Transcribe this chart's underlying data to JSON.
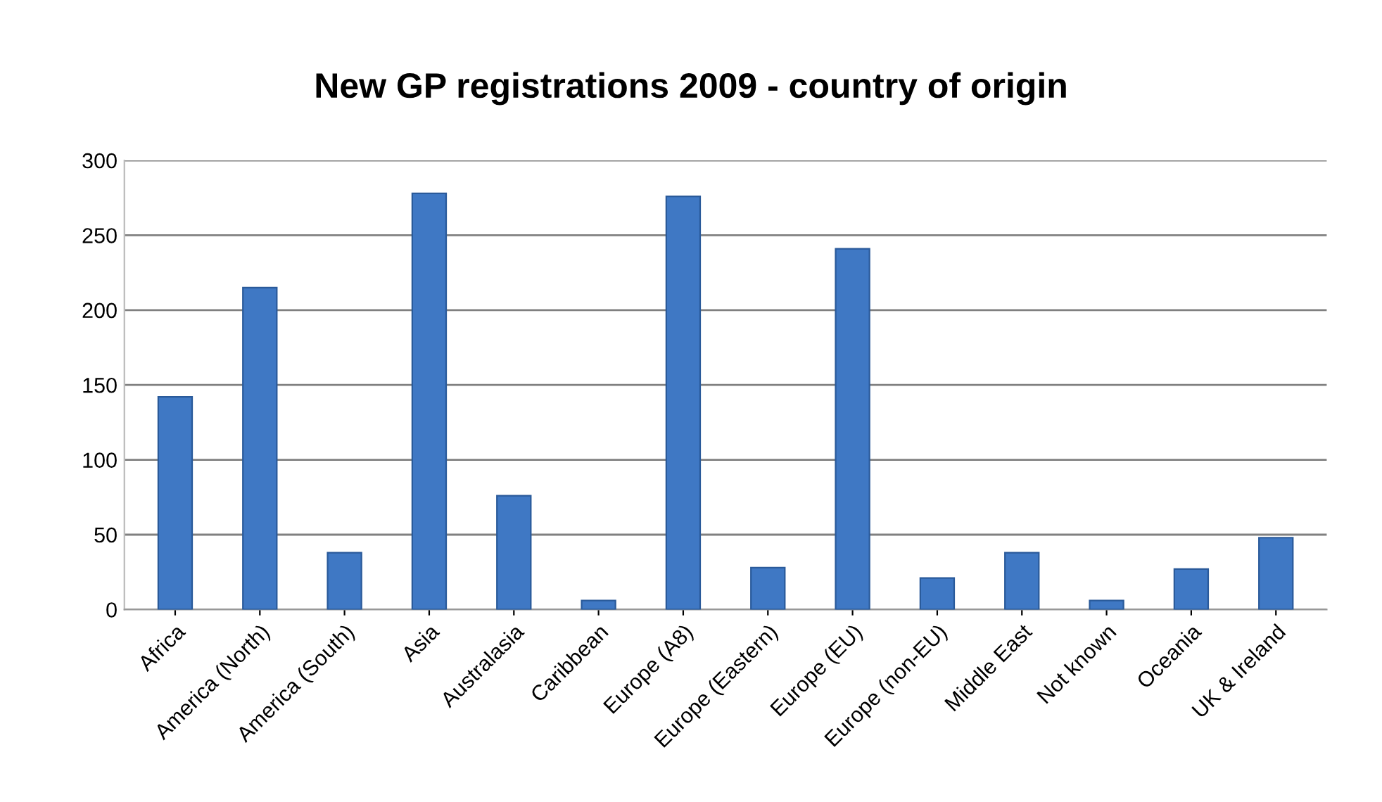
{
  "chart_data": {
    "type": "bar",
    "title": "New GP registrations 2009 - country of origin",
    "categories": [
      "Africa",
      "America (North)",
      "America (South)",
      "Asia",
      "Australasia",
      "Caribbean",
      "Europe (A8)",
      "Europe (Eastern)",
      "Europe (EU)",
      "Europe (non-EU)",
      "Middle East",
      "Not known",
      "Oceania",
      "UK & Ireland"
    ],
    "values": [
      142,
      215,
      38,
      278,
      76,
      6,
      276,
      28,
      241,
      21,
      38,
      6,
      27,
      48
    ],
    "color": "#3f78c4",
    "ylim": [
      0,
      300
    ],
    "yticks": [
      0,
      50,
      100,
      150,
      200,
      250,
      300
    ],
    "grid": "y"
  }
}
